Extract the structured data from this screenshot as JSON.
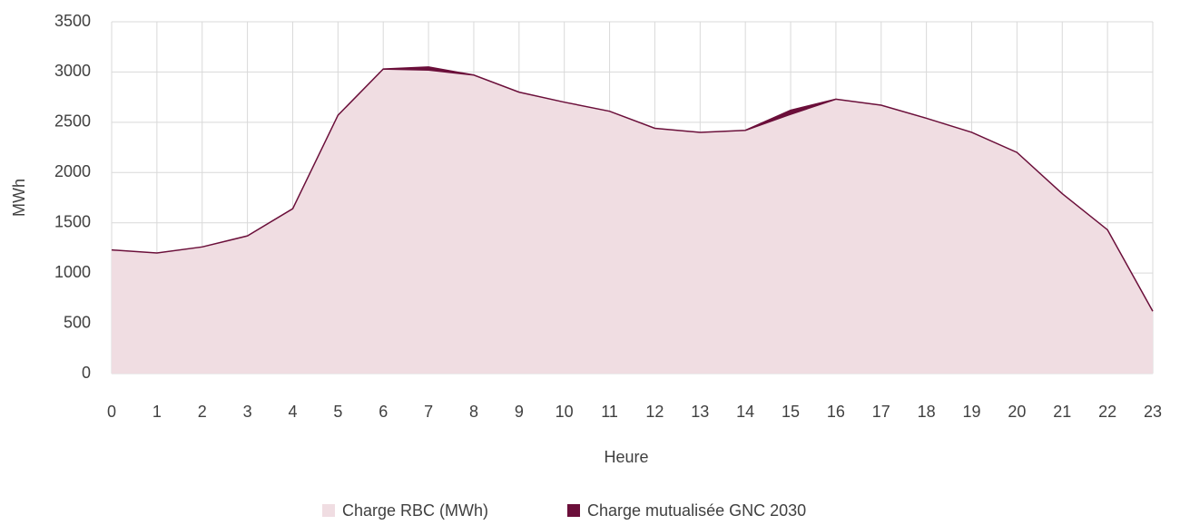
{
  "chart_data": {
    "type": "area",
    "x": [
      0,
      1,
      2,
      3,
      4,
      5,
      6,
      7,
      8,
      9,
      10,
      11,
      12,
      13,
      14,
      15,
      16,
      17,
      18,
      19,
      20,
      21,
      22,
      23
    ],
    "series": [
      {
        "name": "Charge RBC (MWh)",
        "color": "#f0dde2",
        "values": [
          1230,
          1200,
          1260,
          1370,
          1640,
          2570,
          3030,
          3020,
          2970,
          2800,
          2700,
          2610,
          2440,
          2400,
          2420,
          2580,
          2730,
          2670,
          2540,
          2400,
          2200,
          1790,
          1430,
          620
        ]
      },
      {
        "name": "Charge mutualisée GNC 2030",
        "color": "#6b0f3a",
        "values": [
          0,
          0,
          0,
          0,
          0,
          0,
          0,
          30,
          0,
          0,
          0,
          0,
          0,
          0,
          0,
          40,
          0,
          0,
          0,
          0,
          0,
          0,
          0,
          0
        ]
      }
    ],
    "stacked": true,
    "xlabel": "Heure",
    "ylabel": "MWh",
    "xlim": [
      0,
      23
    ],
    "xticks": [
      0,
      1,
      2,
      3,
      4,
      5,
      6,
      7,
      8,
      9,
      10,
      11,
      12,
      13,
      14,
      15,
      16,
      17,
      18,
      19,
      20,
      21,
      22,
      23
    ],
    "ylim": [
      0,
      3500
    ],
    "yticks": [
      0,
      500,
      1000,
      1500,
      2000,
      2500,
      3000,
      3500
    ],
    "grid": true,
    "legend": "bottom"
  }
}
